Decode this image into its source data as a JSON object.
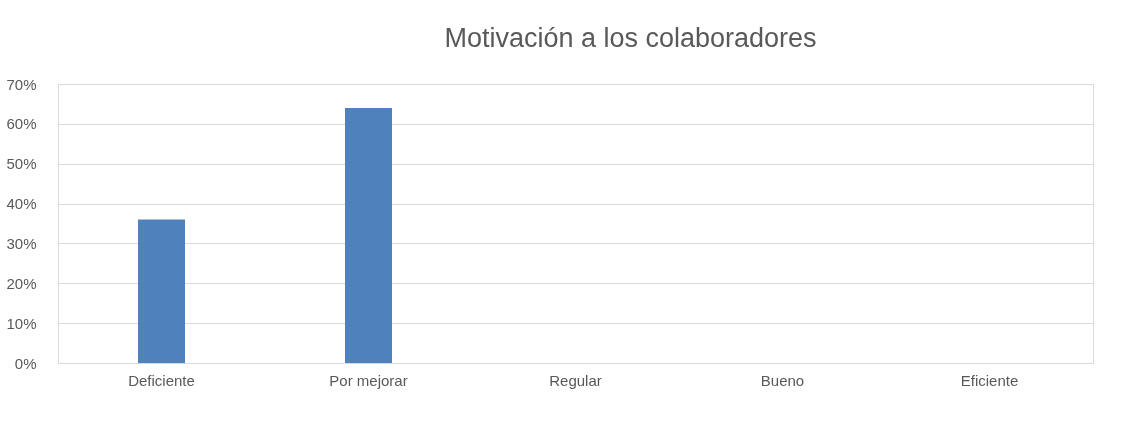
{
  "chart_data": {
    "type": "bar",
    "title": "Motivación a los colaboradores",
    "categories": [
      "Deficiente",
      "Por mejorar",
      "Regular",
      "Bueno",
      "Eficiente"
    ],
    "values": [
      36,
      64,
      0,
      0,
      0
    ],
    "color": "#4f81bd",
    "ylim": [
      0,
      70
    ],
    "yticks": [
      {
        "value": 0,
        "label": "0%"
      },
      {
        "value": 10,
        "label": "10%"
      },
      {
        "value": 20,
        "label": "20%"
      },
      {
        "value": 30,
        "label": "30%"
      },
      {
        "value": 40,
        "label": "40%"
      },
      {
        "value": 50,
        "label": "50%"
      },
      {
        "value": 60,
        "label": "60%"
      },
      {
        "value": 70,
        "label": "70%"
      }
    ],
    "grid": "y"
  }
}
